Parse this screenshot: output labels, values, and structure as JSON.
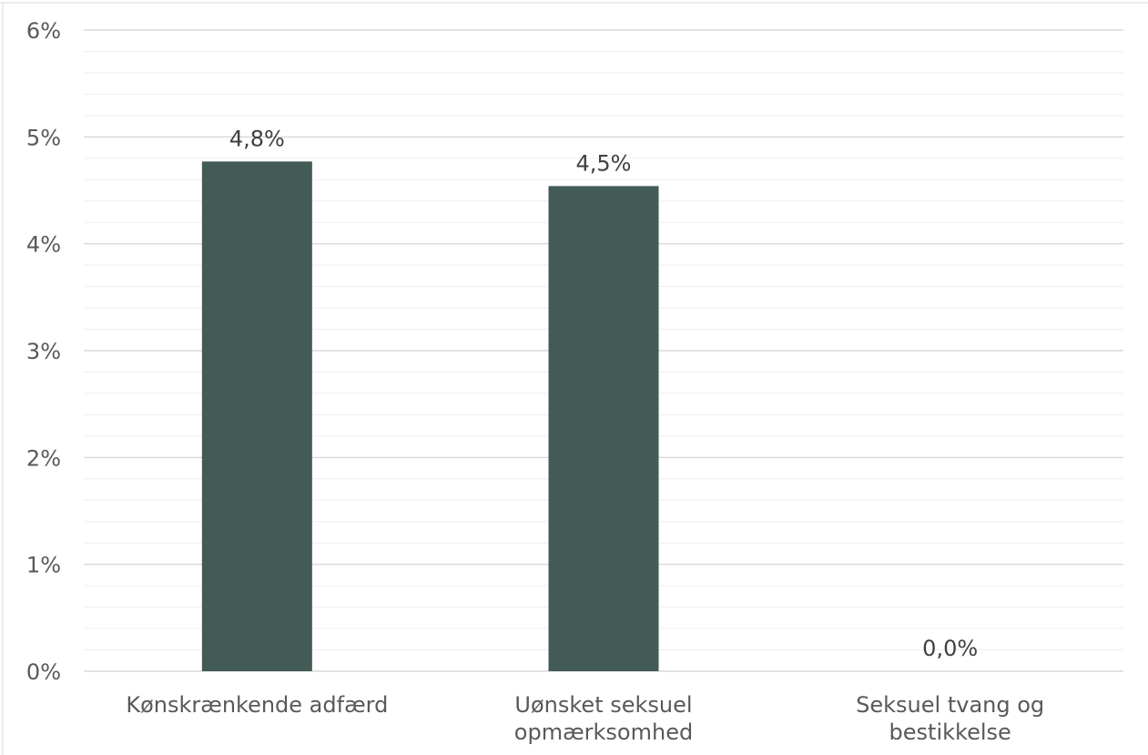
{
  "chart_data": {
    "type": "bar",
    "categories": [
      [
        "Kønskrænkende adfærd"
      ],
      [
        "Uønsket seksuel",
        "opmærksomhed"
      ],
      [
        "Seksuel tvang og",
        "bestikkelse"
      ]
    ],
    "values": [
      4.77,
      4.54,
      0.0
    ],
    "data_labels": [
      "4,8%",
      "4,5%",
      "0,0%"
    ],
    "y_ticks": [
      {
        "value": 0,
        "label": "0%"
      },
      {
        "value": 1,
        "label": "1%"
      },
      {
        "value": 2,
        "label": "2%"
      },
      {
        "value": 3,
        "label": "3%"
      },
      {
        "value": 4,
        "label": "4%"
      },
      {
        "value": 5,
        "label": "5%"
      },
      {
        "value": 6,
        "label": "6%"
      }
    ],
    "ylim": [
      0,
      6
    ],
    "minor_grid_step": 0.2,
    "grid": true,
    "bar_color": "#425b57",
    "title": "",
    "xlabel": "",
    "ylabel": ""
  }
}
